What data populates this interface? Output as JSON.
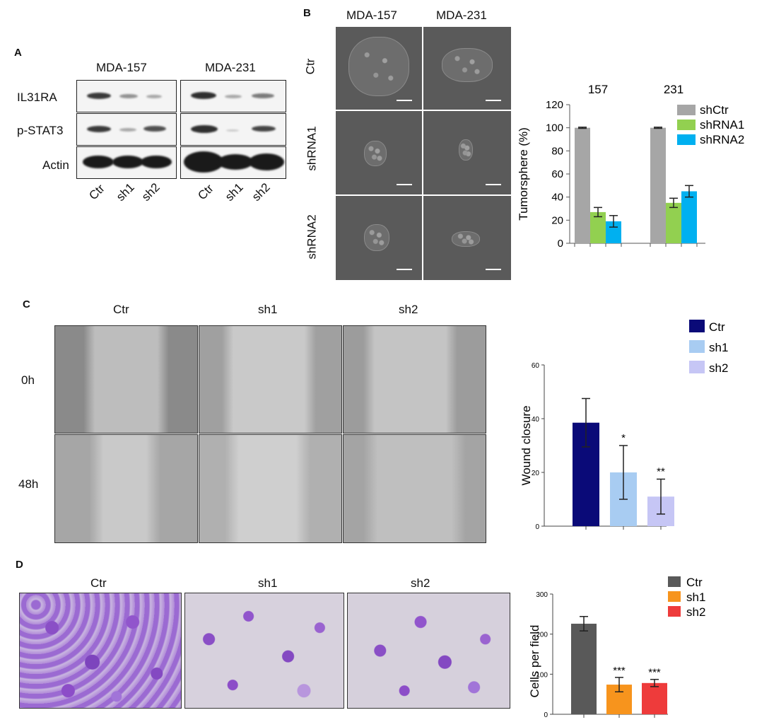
{
  "panel_letters": {
    "a": "A",
    "b": "B",
    "c": "C",
    "d": "D"
  },
  "panel_a": {
    "cell_lines": [
      "MDA-157",
      "MDA-231"
    ],
    "rows": [
      "IL31RA",
      "p-STAT3",
      "Actin"
    ],
    "lanes": [
      "Ctr",
      "sh1",
      "sh2"
    ]
  },
  "panel_b": {
    "columns": [
      "MDA-157",
      "MDA-231"
    ],
    "rows": [
      "Ctr",
      "shRNA1",
      "shRNA2"
    ]
  },
  "panel_c": {
    "columns": [
      "Ctr",
      "sh1",
      "sh2"
    ],
    "rows": [
      "0h",
      "48h"
    ]
  },
  "panel_d": {
    "columns": [
      "Ctr",
      "sh1",
      "sh2"
    ]
  },
  "colors": {
    "b_shCtr": "#a6a6a6",
    "b_shRNA1": "#92d050",
    "b_shRNA2": "#00b0f0",
    "c_ctr": "#0a0a78",
    "c_sh1": "#a8ccf2",
    "c_sh2": "#c6c6f5",
    "d_ctr": "#595959",
    "d_sh1": "#f7941d",
    "d_sh2": "#ee3b3b"
  },
  "chart_data": [
    {
      "type": "bar",
      "panel": "B",
      "categories": [
        "157",
        "231"
      ],
      "series": [
        {
          "name": "shCtr",
          "values": [
            100,
            100
          ],
          "errors": [
            0.5,
            0.5
          ]
        },
        {
          "name": "shRNA1",
          "values": [
            27,
            35
          ],
          "errors": [
            4,
            4
          ]
        },
        {
          "name": "shRNA2",
          "values": [
            19,
            45
          ],
          "errors": [
            5,
            5
          ]
        }
      ],
      "ylabel": "Tumorsphere (%)",
      "ylim": [
        0,
        120
      ],
      "yticks": [
        0,
        20,
        40,
        60,
        80,
        100,
        120
      ],
      "legend": "top-right"
    },
    {
      "type": "bar",
      "panel": "C",
      "categories": [
        "Ctr",
        "sh1",
        "sh2"
      ],
      "values": [
        38.5,
        20,
        11
      ],
      "errors": [
        9,
        10,
        6.5
      ],
      "annotations": [
        "",
        "*",
        "**"
      ],
      "ylabel": "Wound closure",
      "ylim": [
        0,
        60
      ],
      "yticks": [
        0,
        20,
        40,
        60
      ],
      "legend": "top-right"
    },
    {
      "type": "bar",
      "panel": "D",
      "categories": [
        "Ctr",
        "sh1",
        "sh2"
      ],
      "values": [
        226,
        74,
        78
      ],
      "errors": [
        18,
        18,
        9
      ],
      "annotations": [
        "",
        "***",
        "***"
      ],
      "ylabel": "Cells per field",
      "ylim": [
        0,
        300
      ],
      "yticks": [
        0,
        100,
        200,
        300
      ],
      "legend": "top-right"
    }
  ]
}
